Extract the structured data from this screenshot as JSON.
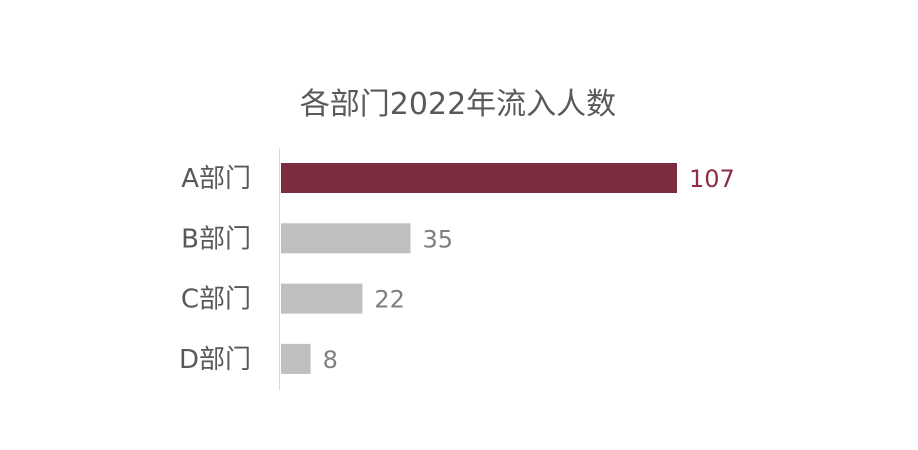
{
  "chart_data": {
    "type": "bar",
    "orientation": "horizontal",
    "title": "各部门2022年流入人数",
    "categories": [
      "A部门",
      "B部门",
      "C部门",
      "D部门"
    ],
    "values": [
      107,
      35,
      22,
      8
    ],
    "highlight_index": 0,
    "colors": {
      "highlight": "#7B2C3F",
      "default": "#BFBFBF",
      "highlight_label": "#8B2E45",
      "default_label": "#7F7F7F",
      "axis": "#D9D9D9"
    },
    "xlim": [
      0,
      107
    ],
    "grid": false,
    "legend": "none"
  }
}
